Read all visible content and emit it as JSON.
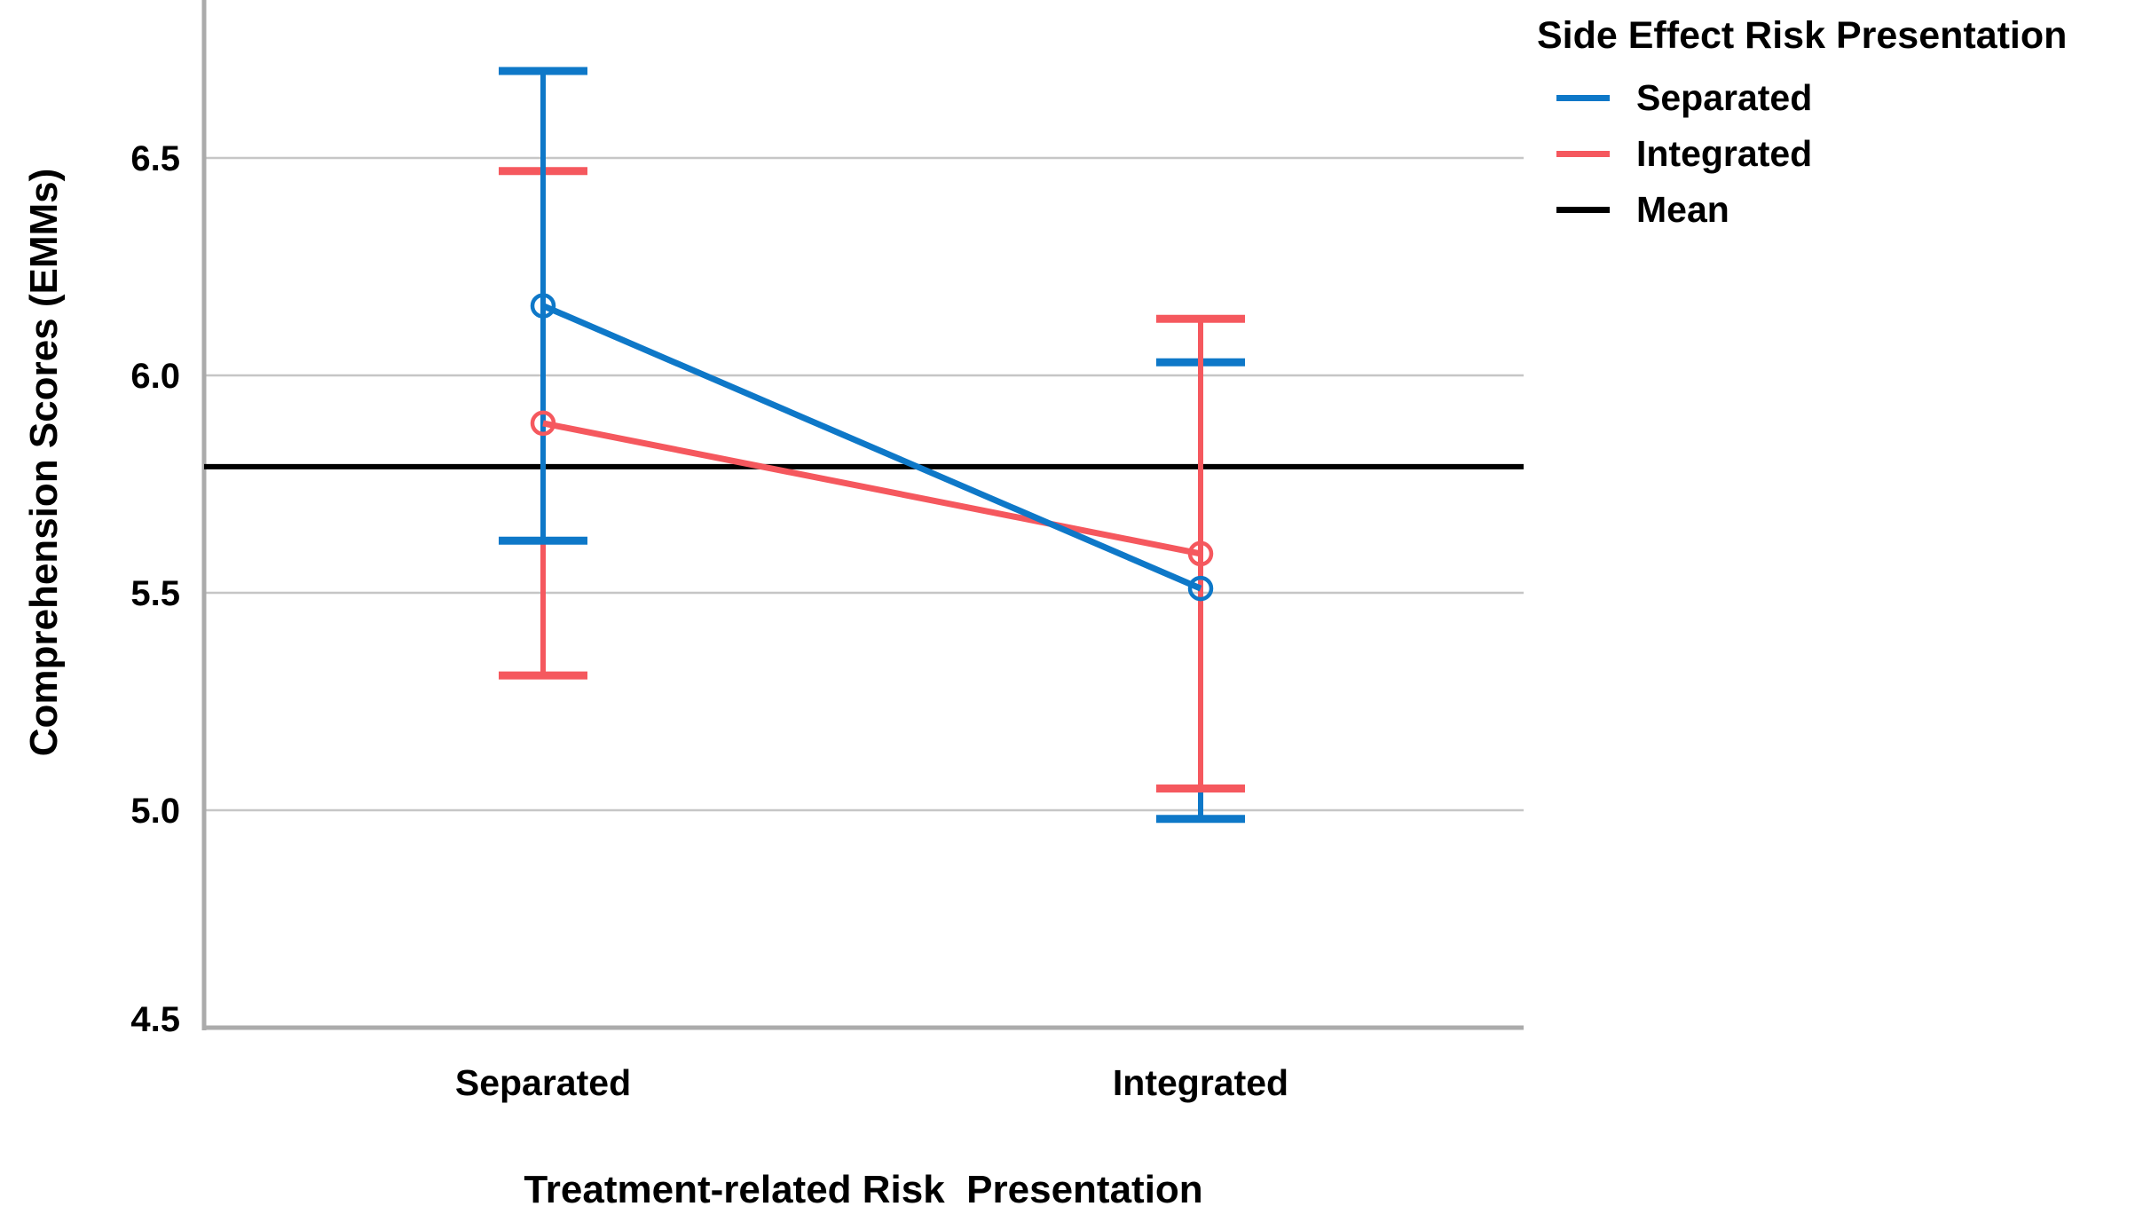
{
  "chart_data": {
    "type": "line",
    "title": "",
    "x_axis": {
      "label": "Treatment-related Risk  Presentation",
      "categories": [
        "Separated",
        "Integrated"
      ]
    },
    "y_axis": {
      "label": "Comprehension Scores (EMMs)",
      "ticks": [
        "6.5",
        "6.0",
        "5.5",
        "5.0",
        "4.5"
      ],
      "tick_values": [
        6.5,
        6.0,
        5.5,
        5.0,
        4.5
      ],
      "min": 4.5,
      "max": 6.86,
      "grid": true
    },
    "legend": {
      "title": "Side Effect Risk Presentation",
      "position": "top-right",
      "items": [
        {
          "label": "Separated",
          "color": "#0E78C8"
        },
        {
          "label": "Integrated",
          "color": "#F5585E"
        },
        {
          "label": "Mean",
          "color": "#000000"
        }
      ]
    },
    "series": [
      {
        "name": "Separated",
        "color": "#0E78C8",
        "marker": "open-circle",
        "values": [
          6.16,
          5.51
        ],
        "ci_upper": [
          6.7,
          6.03
        ],
        "ci_lower": [
          5.62,
          4.98
        ]
      },
      {
        "name": "Integrated",
        "color": "#F5585E",
        "marker": "open-circle",
        "values": [
          5.89,
          5.59
        ],
        "ci_upper": [
          6.47,
          6.13
        ],
        "ci_lower": [
          5.31,
          5.05
        ]
      }
    ],
    "mean_line": {
      "label": "Mean",
      "value": 5.79,
      "color": "#000000"
    },
    "colors": {
      "gridline": "#C6C6C6",
      "axis": "#ABABAB",
      "background": "#FFFFFF"
    }
  }
}
